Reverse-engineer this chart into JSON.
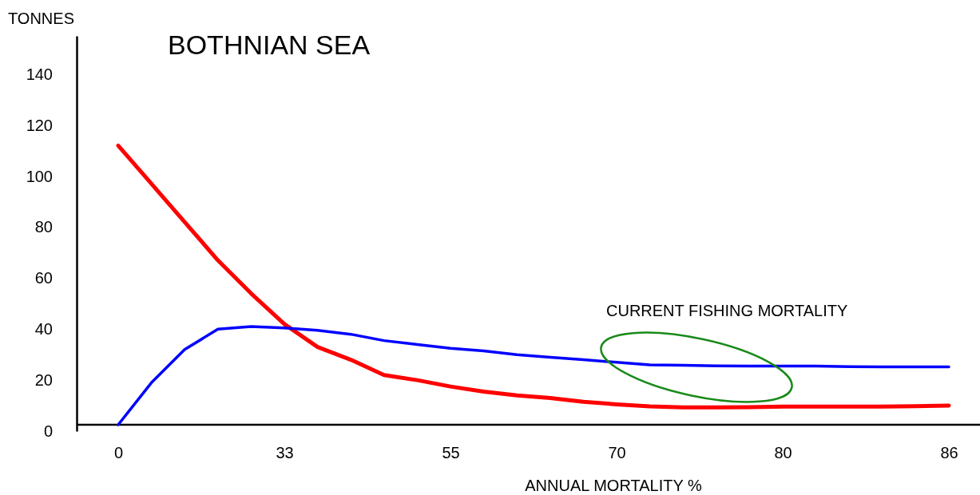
{
  "chart_data": {
    "type": "line",
    "title": "BOTHNIAN SEA",
    "xlabel": "ANNUAL MORTALITY %",
    "ylabel": "TONNES",
    "categories": [
      "0",
      null,
      null,
      null,
      null,
      "33",
      null,
      null,
      null,
      null,
      "55",
      null,
      null,
      null,
      null,
      "70",
      null,
      null,
      null,
      null,
      "80",
      null,
      null,
      null,
      null,
      "86"
    ],
    "ylim": [
      0,
      155
    ],
    "yticks": [
      0,
      20,
      40,
      60,
      80,
      100,
      120,
      140
    ],
    "grid": false,
    "marker": "none",
    "line_style": "solid",
    "annotations": [
      "CURRENT FISHING MORTALITY"
    ],
    "series": [
      {
        "color": "#ff0000",
        "values": [
          112,
          97,
          82,
          67,
          54,
          42,
          33,
          28,
          22,
          20,
          17.5,
          15.5,
          14,
          13,
          11.5,
          10.5,
          9.7,
          9.3,
          9.3,
          9.4,
          9.6,
          9.6,
          9.6,
          9.6,
          9.8,
          10
        ]
      },
      {
        "color": "#0000ff",
        "values": [
          2.5,
          19,
          32,
          40,
          41,
          40.5,
          39.5,
          38,
          35.5,
          34,
          32.5,
          31.5,
          30,
          29,
          28,
          27,
          26,
          25.8,
          25.6,
          25.5,
          25.5,
          25.5,
          25.3,
          25.2,
          25.2,
          25.2
        ]
      }
    ]
  }
}
